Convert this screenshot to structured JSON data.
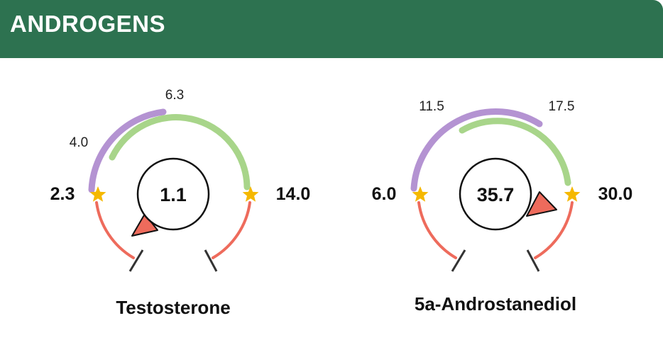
{
  "section": {
    "title": "ANDROGENS"
  },
  "colors": {
    "header_bg": "#2d7250",
    "optimal_range": "#a8d58a",
    "normal_range": "#b493d2",
    "out_of_range": "#ee6b5c",
    "star": "#f5b800",
    "pointer": "#ee6b5c"
  },
  "gauges": [
    {
      "name": "Testosterone",
      "value": "1.1",
      "range_min": "2.3",
      "range_max": "14.0",
      "optimal_low": "4.0",
      "optimal_high": "6.3",
      "min_icon": "star-icon",
      "max_icon": "star-icon"
    },
    {
      "name": "5a-Androstanediol",
      "value": "35.7",
      "range_min": "6.0",
      "range_max": "30.0",
      "optimal_low": "11.5",
      "optimal_high": "17.5",
      "min_icon": "star-icon",
      "max_icon": "star-icon"
    }
  ]
}
